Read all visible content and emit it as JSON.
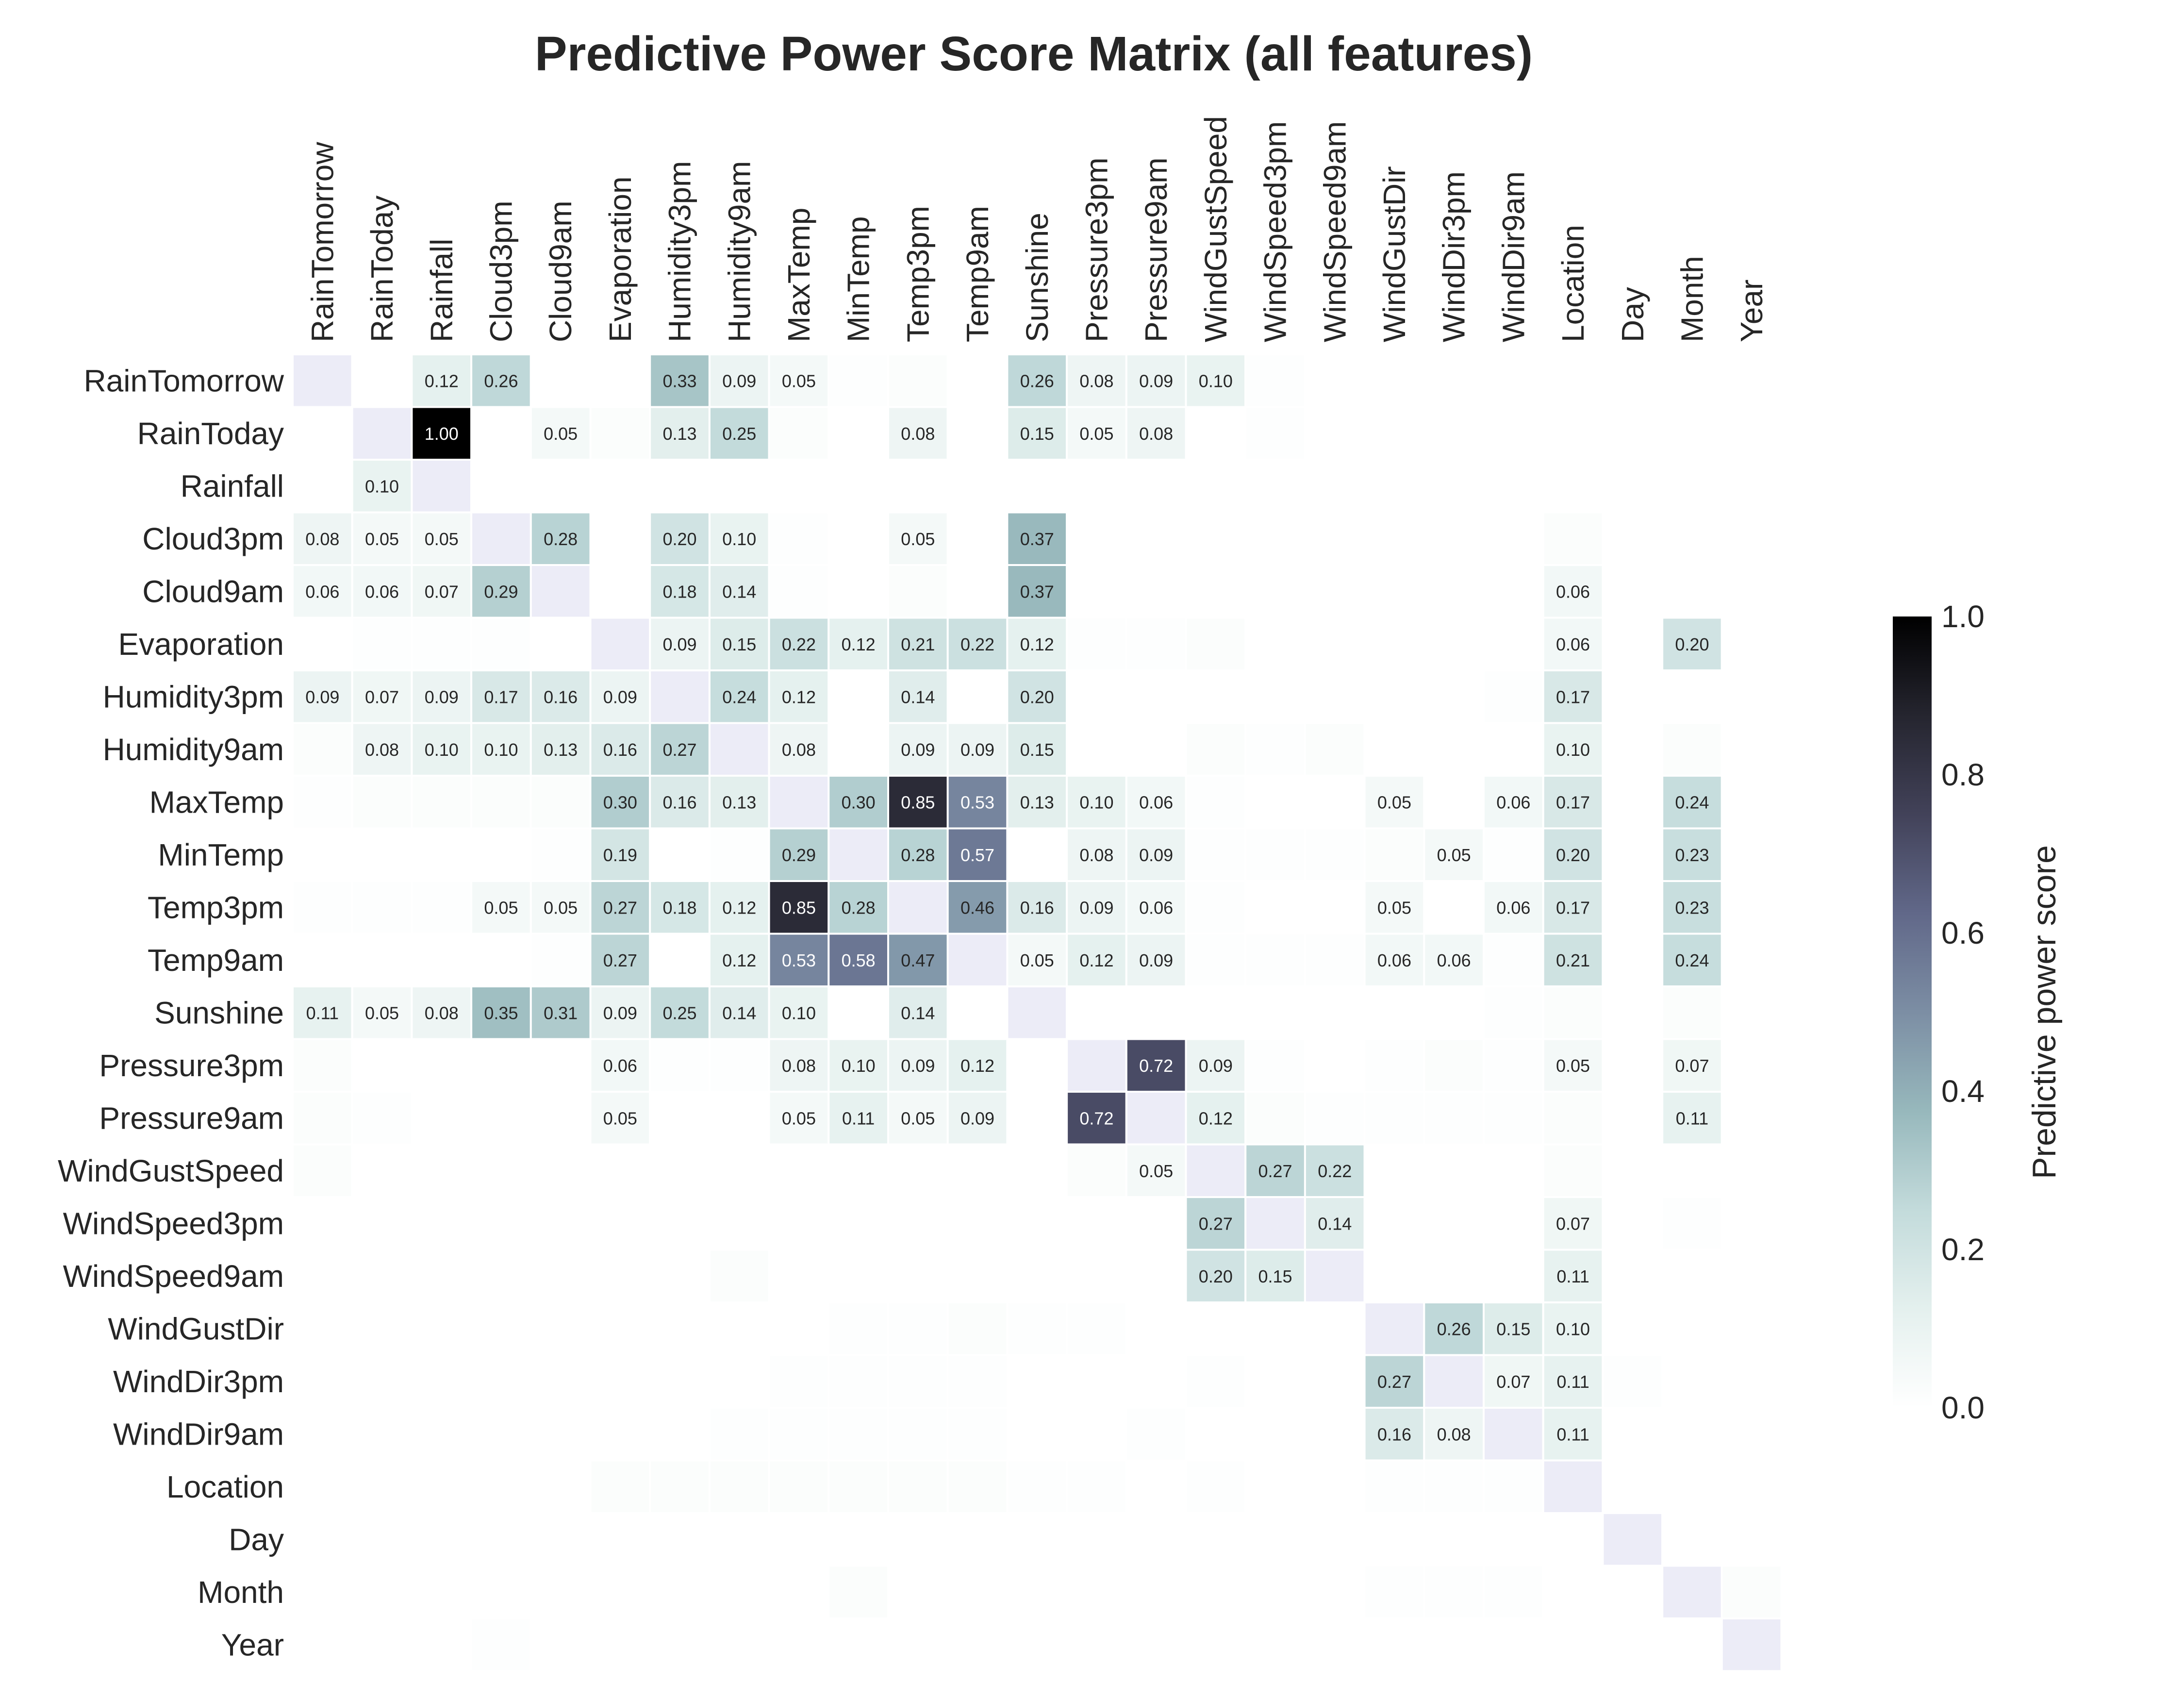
{
  "chart_data": {
    "type": "heatmap",
    "title": "Predictive Power Score Matrix (all features)",
    "colorbar_label": "Predictive power score",
    "colorbar_ticks": [
      "0.0",
      "0.2",
      "0.4",
      "0.6",
      "0.8",
      "1.0"
    ],
    "vmin": 0.0,
    "vmax": 1.0,
    "colormap": "bone_r",
    "diagonal_color": "#ececf7",
    "labels": [
      "RainTomorrow",
      "RainToday",
      "Rainfall",
      "Cloud3pm",
      "Cloud9am",
      "Evaporation",
      "Humidity3pm",
      "Humidity9am",
      "MaxTemp",
      "MinTemp",
      "Temp3pm",
      "Temp9am",
      "Sunshine",
      "Pressure3pm",
      "Pressure9am",
      "WindGustSpeed",
      "WindSpeed3pm",
      "WindSpeed9am",
      "WindGustDir",
      "WindDir3pm",
      "WindDir9am",
      "Location",
      "Day",
      "Month",
      "Year"
    ],
    "annotation_threshold": 0.05,
    "matrix": [
      [
        null,
        0,
        0.12,
        0.26,
        0,
        0,
        0.33,
        0.09,
        0.05,
        0.01,
        0.02,
        0,
        0.26,
        0.08,
        0.09,
        0.1,
        0.01,
        0,
        0,
        0,
        0,
        0,
        0,
        0,
        0
      ],
      [
        0,
        null,
        1.0,
        0,
        0.05,
        0.02,
        0.13,
        0.25,
        0.02,
        0,
        0.08,
        0,
        0.15,
        0.05,
        0.08,
        0,
        0.01,
        0,
        0,
        0,
        0,
        0,
        0,
        0,
        0
      ],
      [
        0,
        0.1,
        null,
        0,
        0,
        0,
        0,
        0,
        0,
        0,
        0,
        0,
        0,
        0,
        0,
        0,
        0,
        0,
        0,
        0,
        0,
        0,
        0,
        0,
        0
      ],
      [
        0.08,
        0.05,
        0.05,
        null,
        0.28,
        0,
        0.2,
        0.1,
        0.01,
        0,
        0.05,
        0,
        0.37,
        0,
        0,
        0,
        0,
        0,
        0,
        0,
        0,
        0.02,
        0,
        0,
        0
      ],
      [
        0.06,
        0.06,
        0.07,
        0.29,
        null,
        0,
        0.18,
        0.14,
        0.01,
        0,
        0.02,
        0,
        0.37,
        0,
        0,
        0,
        0,
        0,
        0,
        0,
        0,
        0.06,
        0,
        0,
        0
      ],
      [
        0,
        0.01,
        0.01,
        0.01,
        0,
        null,
        0.09,
        0.15,
        0.22,
        0.12,
        0.21,
        0.22,
        0.12,
        0.01,
        0.01,
        0.02,
        0,
        0,
        0,
        0,
        0,
        0.06,
        0,
        0.2,
        0
      ],
      [
        0.09,
        0.07,
        0.09,
        0.17,
        0.16,
        0.09,
        null,
        0.24,
        0.12,
        0,
        0.14,
        0,
        0.2,
        0,
        0,
        0,
        0,
        0,
        0,
        0,
        0.01,
        0.17,
        0,
        0,
        0
      ],
      [
        0.02,
        0.08,
        0.1,
        0.1,
        0.13,
        0.16,
        0.27,
        null,
        0.08,
        0,
        0.09,
        0.09,
        0.15,
        0,
        0,
        0.02,
        0.01,
        0.02,
        0,
        0,
        0,
        0.1,
        0,
        0.02,
        0
      ],
      [
        0.01,
        0.02,
        0.02,
        0.02,
        0.02,
        0.3,
        0.16,
        0.13,
        null,
        0.3,
        0.85,
        0.53,
        0.13,
        0.1,
        0.06,
        0.01,
        0,
        0,
        0.05,
        0,
        0.06,
        0.17,
        0,
        0.24,
        0
      ],
      [
        0,
        0,
        0,
        0,
        0.01,
        0.19,
        0,
        0.01,
        0.29,
        null,
        0.28,
        0.57,
        0,
        0.08,
        0.09,
        0.01,
        0.01,
        0.01,
        0.02,
        0.05,
        0.01,
        0.2,
        0,
        0.23,
        0
      ],
      [
        0.01,
        0.01,
        0.01,
        0.05,
        0.05,
        0.27,
        0.18,
        0.12,
        0.85,
        0.28,
        null,
        0.46,
        0.16,
        0.09,
        0.06,
        0.01,
        0,
        0,
        0.05,
        0,
        0.06,
        0.17,
        0,
        0.23,
        0
      ],
      [
        0,
        0,
        0,
        0,
        0.01,
        0.27,
        0,
        0.12,
        0.53,
        0.58,
        0.47,
        null,
        0.05,
        0.12,
        0.09,
        0.01,
        0.01,
        0.01,
        0.06,
        0.06,
        0.01,
        0.21,
        0,
        0.24,
        0
      ],
      [
        0.11,
        0.05,
        0.08,
        0.35,
        0.31,
        0.09,
        0.25,
        0.14,
        0.1,
        0,
        0.14,
        0,
        null,
        0,
        0,
        0,
        0,
        0,
        0,
        0,
        0.01,
        0.02,
        0,
        0.02,
        0
      ],
      [
        0.02,
        0,
        0,
        0,
        0,
        0.06,
        0.01,
        0.01,
        0.08,
        0.1,
        0.09,
        0.12,
        0,
        null,
        0.72,
        0.09,
        0.01,
        0,
        0.01,
        0.02,
        0.01,
        0.05,
        0,
        0.07,
        0
      ],
      [
        0.02,
        0.01,
        0,
        0,
        0,
        0.05,
        0,
        0,
        0.05,
        0.11,
        0.05,
        0.09,
        0,
        0.72,
        null,
        0.12,
        0.02,
        0.01,
        0.01,
        0.01,
        0.01,
        0.02,
        0,
        0.11,
        0
      ],
      [
        0.02,
        0,
        0,
        0,
        0,
        0,
        0,
        0,
        0,
        0,
        0,
        0,
        0,
        0.02,
        0.05,
        null,
        0.27,
        0.22,
        0,
        0,
        0,
        0.02,
        0,
        0,
        0
      ],
      [
        0,
        0,
        0,
        0,
        0,
        0,
        0,
        0,
        0,
        0,
        0,
        0,
        0,
        0,
        0,
        0.27,
        null,
        0.14,
        0,
        0,
        0,
        0.07,
        0,
        0.01,
        0
      ],
      [
        0,
        0,
        0,
        0,
        0,
        0,
        0,
        0.02,
        0,
        0,
        0,
        0,
        0,
        0,
        0,
        0.2,
        0.15,
        null,
        0,
        0,
        0,
        0.11,
        0,
        0,
        0
      ],
      [
        0,
        0,
        0,
        0,
        0,
        0,
        0,
        0,
        0,
        0.01,
        0.01,
        0.02,
        0.01,
        0.01,
        0,
        0,
        0,
        0,
        null,
        0.26,
        0.15,
        0.1,
        0,
        0,
        0
      ],
      [
        0,
        0,
        0,
        0,
        0,
        0,
        0,
        0,
        0.01,
        0.01,
        0.01,
        0.01,
        0,
        0,
        0,
        0.01,
        0,
        0,
        0.27,
        null,
        0.07,
        0.11,
        0.01,
        0,
        0
      ],
      [
        0,
        0,
        0,
        0,
        0,
        0,
        0,
        0.01,
        0.01,
        0.01,
        0.01,
        0.01,
        0,
        0,
        0.01,
        0,
        0,
        0,
        0.16,
        0.08,
        null,
        0.11,
        0,
        0,
        0
      ],
      [
        0,
        0,
        0,
        0,
        0,
        0.02,
        0.02,
        0.02,
        0.02,
        0.02,
        0.02,
        0.02,
        0.01,
        0.01,
        0,
        0.01,
        0,
        0,
        0.01,
        0.01,
        0.01,
        null,
        0,
        0,
        0
      ],
      [
        0,
        0,
        0,
        0,
        0,
        0,
        0,
        0,
        0,
        0,
        0,
        0,
        0,
        0,
        0,
        0,
        0,
        0,
        0,
        0,
        0,
        0,
        null,
        0,
        0
      ],
      [
        0,
        0,
        0,
        0,
        0,
        0,
        0,
        0,
        0,
        0.02,
        0,
        0,
        0,
        0,
        0,
        0,
        0,
        0,
        0.01,
        0.01,
        0.01,
        0,
        0,
        null,
        0.02
      ],
      [
        0,
        0,
        0,
        0.01,
        0,
        0,
        0,
        0,
        0,
        0,
        0,
        0,
        0,
        0,
        0,
        0,
        0,
        0,
        0,
        0,
        0,
        0,
        0,
        0,
        null
      ]
    ]
  }
}
